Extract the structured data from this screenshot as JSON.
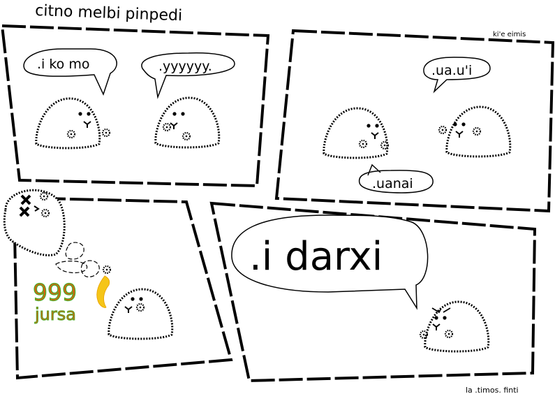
{
  "title": "citno melbi pinpedi",
  "credit_top": "ki'e eimis",
  "credit_bottom": "la .timos. finti",
  "panel1": {
    "bubble_left": ".i ko mo",
    "bubble_right": ".yyyyyy."
  },
  "panel2": {
    "bubble_top": ".ua.u'i",
    "bubble_bottom": ".uanai"
  },
  "panel3": {
    "damage_number": "999",
    "damage_word": "jursa"
  },
  "panel4": {
    "bubble": ".i darxi"
  },
  "colors": {
    "damage_fill": "#e05a10",
    "damage_outline": "#4caf2a",
    "flame": "#f5c518"
  }
}
